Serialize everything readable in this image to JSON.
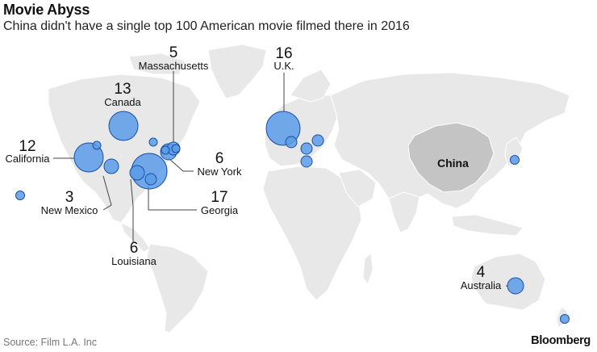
{
  "header": {
    "title": "Movie Abyss",
    "subtitle": "China didn't have a single top 100 American movie filmed there in 2016"
  },
  "footer": {
    "source": "Source: Film L.A. Inc",
    "brand": "Bloomberg"
  },
  "highlight_label": "China",
  "colors": {
    "bubble_fill": "#5b9be8",
    "bubble_stroke": "#1a4fa8",
    "land": "#e8e8e8",
    "highlight_land": "#c4c4c4"
  },
  "locations": [
    {
      "id": "uk",
      "name": "U.K.",
      "count": "16"
    },
    {
      "id": "canada",
      "name": "Canada",
      "count": "13"
    },
    {
      "id": "california",
      "name": "California",
      "count": "12"
    },
    {
      "id": "massachusetts",
      "name": "Massachusetts",
      "count": "5"
    },
    {
      "id": "new-york",
      "name": "New York",
      "count": "6"
    },
    {
      "id": "georgia",
      "name": "Georgia",
      "count": "17"
    },
    {
      "id": "new-mexico",
      "name": "New Mexico",
      "count": "3"
    },
    {
      "id": "louisiana",
      "name": "Louisiana",
      "count": "6"
    },
    {
      "id": "australia",
      "name": "Australia",
      "count": "4"
    }
  ]
}
